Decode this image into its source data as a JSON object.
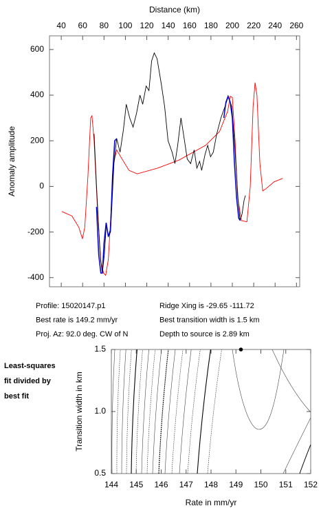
{
  "chart_data": [
    {
      "type": "line",
      "xlabel": "Distance (km)",
      "ylabel": "Anomaly amplitude",
      "xlim": [
        29,
        263
      ],
      "ylim": [
        -440,
        660
      ],
      "xticks": [
        40,
        60,
        80,
        100,
        120,
        140,
        160,
        180,
        200,
        220,
        240,
        260
      ],
      "yticks": [
        -400,
        -200,
        0,
        200,
        400,
        600
      ],
      "series": [
        {
          "color": "#ff0000",
          "x": [
            40.5,
            50,
            56.5,
            59.8,
            62,
            65,
            67.5,
            68.7,
            70.7,
            73.9,
            77,
            79.6,
            81.5,
            84,
            86.7,
            89,
            91.8,
            96.9,
            103.4,
            111,
            130,
            150,
            175,
            188,
            195.7,
            198,
            200,
            202.6,
            205,
            208.5,
            213.6,
            216.8,
            219.4,
            221.3,
            223,
            225.8,
            228.4,
            231.5,
            239,
            247
          ],
          "values": [
            -110,
            -130,
            -180,
            -230,
            -180,
            50,
            300,
            310,
            200,
            -100,
            -330,
            -380,
            -390,
            -320,
            -100,
            100,
            160,
            120,
            70,
            55,
            80,
            115,
            180,
            240,
            330,
            395,
            390,
            200,
            -50,
            -150,
            -155,
            0,
            350,
            455,
            400,
            100,
            -20,
            -10,
            20,
            35
          ]
        },
        {
          "color": "#000000",
          "x": [
            70.7,
            73,
            76.4,
            78.4,
            80.3,
            82.2,
            84.1,
            86.1,
            89.3,
            91.8,
            95,
            98.2,
            100.8,
            104,
            107.2,
            110.4,
            113.6,
            116.2,
            119.4,
            122,
            124.5,
            127,
            129.6,
            133.5,
            136.7,
            139.9,
            143.7,
            146.3,
            148.9,
            152,
            154.6,
            157.8,
            161,
            164.3,
            166.8,
            169.4,
            171.3,
            174.5,
            177,
            179.6,
            182.2,
            185.4,
            189.3,
            193.1,
            196.3,
            199.5,
            202,
            205.3,
            207.2,
            209.1,
            211,
            212.3
          ],
          "values": [
            230,
            0,
            -300,
            -380,
            -300,
            -160,
            -220,
            -200,
            100,
            210,
            150,
            250,
            360,
            300,
            260,
            320,
            400,
            360,
            440,
            420,
            550,
            585,
            560,
            450,
            350,
            200,
            150,
            100,
            180,
            300,
            220,
            120,
            100,
            160,
            80,
            110,
            70,
            140,
            180,
            130,
            150,
            230,
            300,
            350,
            395,
            350,
            200,
            -50,
            -150,
            -120,
            -60,
            -40
          ]
        },
        {
          "color": "#0000cc",
          "x": [
            73,
            75,
            77,
            78.5,
            80,
            82,
            84,
            86,
            88,
            90,
            92
          ],
          "values": [
            -90,
            -300,
            -380,
            -380,
            -250,
            -160,
            -220,
            -190,
            50,
            200,
            210
          ]
        },
        {
          "color": "#0000cc",
          "x": [
            192,
            194,
            196,
            198,
            200,
            202,
            204,
            206,
            207.5
          ],
          "values": [
            300,
            370,
            395,
            370,
            300,
            100,
            -50,
            -140,
            -150
          ]
        }
      ],
      "annotations": [
        "Profile: 15020147.p1",
        "Best rate is 149.2 mm/yr",
        "Proj. Az: 92.0 deg. CW of N",
        "Ridge Xing is -29.65 -111.72",
        "Best transition width is 1.5 km",
        "Depth to source is   2.89 km"
      ]
    },
    {
      "type": "contour",
      "xlabel": "Rate in mm/yr",
      "ylabel": "Transition width in km",
      "xlim": [
        144,
        152
      ],
      "ylim": [
        0.5,
        1.5
      ],
      "xticks": [
        144,
        145,
        146,
        147,
        148,
        149,
        150,
        151,
        152
      ],
      "yticks": [
        {
          "value": 0.5,
          "label": "0.5"
        },
        {
          "value": 1.0,
          "label": "1.0"
        },
        {
          "value": 1.5,
          "label": "1.5"
        }
      ],
      "marker": {
        "x": 149.2,
        "y": 1.5
      },
      "annotations": [
        "Least-squares",
        "fit divided by",
        "best fit"
      ]
    }
  ]
}
